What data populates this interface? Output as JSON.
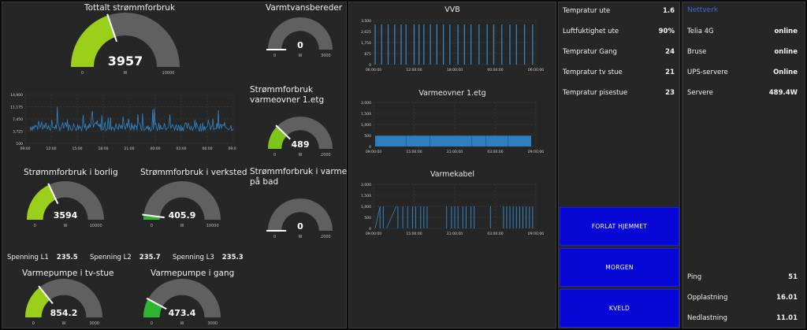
{
  "gauges": [
    {
      "id": "g1",
      "title": "Tottalt strømmforbruk",
      "value": "3957",
      "num": 3957,
      "min": "0",
      "max": "10000",
      "maxnum": 10000,
      "unit": "W",
      "color": "#9ad01a"
    },
    {
      "id": "g2",
      "title": "Varmtvansbereder",
      "value": "0",
      "num": 0,
      "min": "0",
      "max": "3000",
      "maxnum": 3000,
      "unit": "W",
      "color": "#9ad01a"
    },
    {
      "id": "g3",
      "title": "Strømmforbruk varmeovner 1.etg",
      "value": "489",
      "num": 489,
      "min": "0",
      "max": "2000",
      "maxnum": 2000,
      "unit": "W",
      "color": "#7dc41c"
    },
    {
      "id": "g4",
      "title": "Strømmforbruk i varme på bad",
      "value": "0",
      "num": 0,
      "min": "0",
      "max": "2000",
      "maxnum": 2000,
      "unit": "W",
      "color": "#9ad01a"
    },
    {
      "id": "g5",
      "title": "Strømmforbruk i borlig",
      "value": "3594",
      "num": 3594,
      "min": "0",
      "max": "10000",
      "maxnum": 10000,
      "unit": "W",
      "color": "#9ad01a"
    },
    {
      "id": "g6",
      "title": "Strømmforbruk i verksted",
      "value": "405.9",
      "num": 405.9,
      "min": "0",
      "max": "10000",
      "maxnum": 10000,
      "unit": "W",
      "color": "#2fb52f"
    },
    {
      "id": "g7",
      "title": "Varmepumpe i tv-stue",
      "value": "854.2",
      "num": 854.2,
      "min": "0",
      "max": "3000",
      "maxnum": 3000,
      "unit": "W",
      "color": "#9ad01a"
    },
    {
      "id": "g8",
      "title": "Varmepumpe i gang",
      "value": "473.4",
      "num": 473.4,
      "min": "0",
      "max": "3000",
      "maxnum": 3000,
      "unit": "W",
      "color": "#2fb52f"
    }
  ],
  "spenning": [
    {
      "label": "Spenning L1",
      "value": "235.5"
    },
    {
      "label": "Spenning L2",
      "value": "235.7"
    },
    {
      "label": "Spenning L3",
      "value": "235.3"
    }
  ],
  "chart_data": [
    {
      "type": "line",
      "title": "",
      "y_ticks": [
        "14,900",
        "11,175",
        "7,450",
        "3,725",
        "100"
      ],
      "x_ticks": [
        "09:00",
        "12:00",
        "15:00",
        "18:00",
        "21:00",
        "00:00",
        "03:00",
        "06:00",
        "09:00"
      ],
      "ylim": [
        100,
        14900
      ]
    },
    {
      "type": "bar",
      "title": "VVB",
      "y_ticks": [
        "3,500",
        "2,625",
        "1,750",
        "875",
        "0"
      ],
      "x_ticks": [
        "06:00:00",
        "12:00:00",
        "18:00:00",
        "00:00:00",
        "06:00:00"
      ],
      "ylim": [
        0,
        3500
      ]
    },
    {
      "type": "bar",
      "title": "Varmeovner 1.etg",
      "y_ticks": [
        "2,000",
        "1,500",
        "1,000",
        "500",
        "0"
      ],
      "x_ticks": [
        "09:00:00",
        "15:00:00",
        "21:00:00",
        "03:00:00",
        "09:00:00"
      ],
      "ylim": [
        0,
        2000
      ]
    },
    {
      "type": "bar",
      "title": "Varmekabel",
      "y_ticks": [
        "2,000",
        "1,500",
        "1,000",
        "500",
        "0"
      ],
      "x_ticks": [
        "09:00:00",
        "15:00:00",
        "21:00:00",
        "03:00:00",
        "09:00:00"
      ],
      "ylim": [
        0,
        2000
      ]
    }
  ],
  "sensors": [
    {
      "label": "Tempratur ute",
      "value": "1.6"
    },
    {
      "label": "Luftfuktighet ute",
      "value": "90%"
    },
    {
      "label": "Tempratur Gang",
      "value": "24"
    },
    {
      "label": "Tempratur tv stue",
      "value": "21"
    },
    {
      "label": "Tempratur pisestue",
      "value": "23"
    }
  ],
  "buttons": {
    "away": "FORLAT HJEMMET",
    "morning": "MORGEN",
    "evening": "KVELD"
  },
  "network": {
    "title": "Nettverk",
    "items": [
      {
        "label": "Telia 4G",
        "value": "online"
      },
      {
        "label": "Bruse",
        "value": "online"
      },
      {
        "label": "UPS-servere",
        "value": "Online"
      },
      {
        "label": "Servere",
        "value": "489.4W"
      }
    ],
    "stats": [
      {
        "label": "Ping",
        "value": "51"
      },
      {
        "label": "Opplastning",
        "value": "16.01"
      },
      {
        "label": "Nedlastning",
        "value": "11.01"
      }
    ]
  }
}
